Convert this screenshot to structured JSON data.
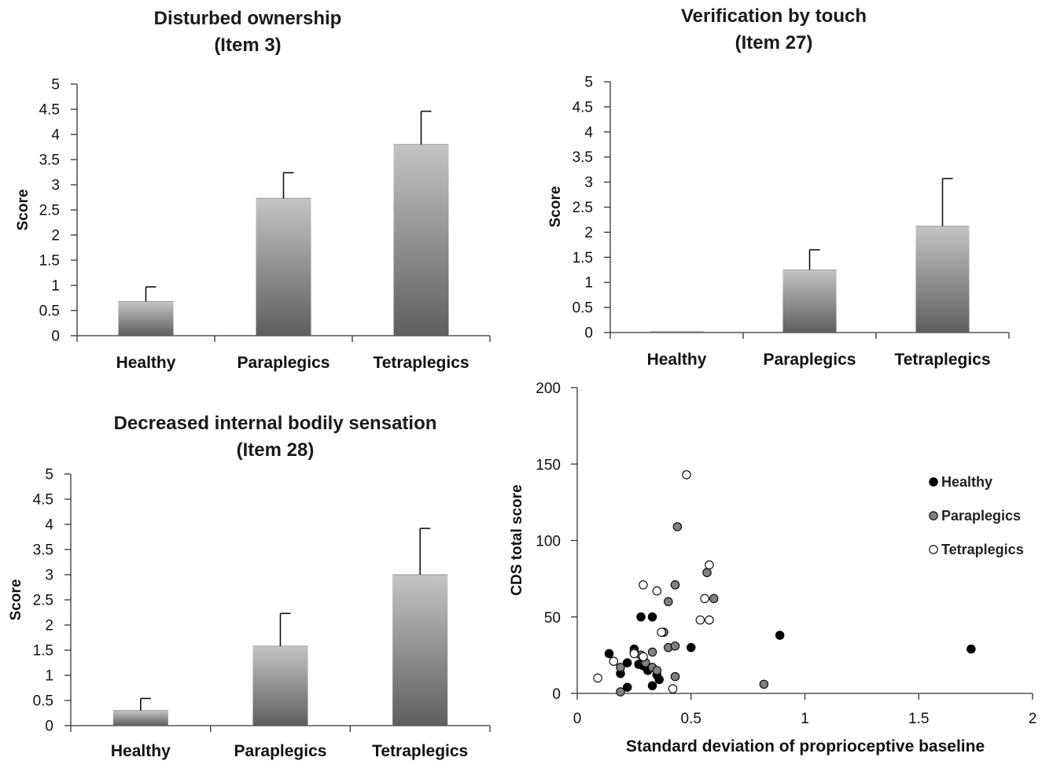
{
  "chart_data": [
    {
      "type": "bar",
      "title": [
        "Disturbed ownership",
        "(Item 3)"
      ],
      "ylabel": "Score",
      "ylim": [
        0,
        5
      ],
      "yticks": [
        0,
        0.5,
        1,
        1.5,
        2,
        2.5,
        3,
        3.5,
        4,
        4.5,
        5
      ],
      "categories": [
        "Healthy",
        "Paraplegics",
        "Tetraplegics"
      ],
      "values": [
        0.68,
        2.73,
        3.8
      ],
      "errors": [
        0.29,
        0.51,
        0.66
      ]
    },
    {
      "type": "bar",
      "title": [
        "Verification by touch",
        "(Item 27)"
      ],
      "ylabel": "Score",
      "ylim": [
        0,
        5
      ],
      "yticks": [
        0,
        0.5,
        1,
        1.5,
        2,
        2.5,
        3,
        3.5,
        4,
        4.5,
        5
      ],
      "categories": [
        "Healthy",
        "Paraplegics",
        "Tetraplegics"
      ],
      "values": [
        0,
        1.25,
        2.12
      ],
      "errors": [
        0,
        0.4,
        0.95
      ]
    },
    {
      "type": "bar",
      "title": [
        "Decreased internal bodily sensation",
        "(Item 28)"
      ],
      "ylabel": "Score",
      "ylim": [
        0,
        5
      ],
      "yticks": [
        0,
        0.5,
        1,
        1.5,
        2,
        2.5,
        3,
        3.5,
        4,
        4.5,
        5
      ],
      "categories": [
        "Healthy",
        "Paraplegics",
        "Tetraplegics"
      ],
      "values": [
        0.3,
        1.58,
        3.0
      ],
      "errors": [
        0.24,
        0.65,
        0.92
      ]
    },
    {
      "type": "scatter",
      "xlabel": "Standard deviation of proprioceptive baseline",
      "ylabel": "CDS total score",
      "xlim": [
        0,
        2
      ],
      "ylim": [
        0,
        200
      ],
      "xticks": [
        0,
        0.5,
        1,
        1.5,
        2
      ],
      "yticks": [
        0,
        50,
        100,
        150,
        200
      ],
      "legend_position": "right",
      "series": [
        {
          "name": "Healthy",
          "color": "#000000",
          "points": [
            [
              0.14,
              26
            ],
            [
              0.19,
              13
            ],
            [
              0.22,
              20
            ],
            [
              0.22,
              4
            ],
            [
              0.25,
              29
            ],
            [
              0.27,
              19
            ],
            [
              0.28,
              50
            ],
            [
              0.29,
              18
            ],
            [
              0.31,
              15
            ],
            [
              0.33,
              50
            ],
            [
              0.33,
              5
            ],
            [
              0.35,
              12
            ],
            [
              0.36,
              9
            ],
            [
              0.5,
              30
            ],
            [
              0.89,
              38
            ],
            [
              1.73,
              29
            ]
          ]
        },
        {
          "name": "Paraplegics",
          "color": "#808080",
          "points": [
            [
              0.19,
              17
            ],
            [
              0.19,
              1
            ],
            [
              0.25,
              27
            ],
            [
              0.28,
              25
            ],
            [
              0.3,
              20
            ],
            [
              0.33,
              27
            ],
            [
              0.33,
              17
            ],
            [
              0.35,
              15
            ],
            [
              0.38,
              40
            ],
            [
              0.4,
              60
            ],
            [
              0.4,
              30
            ],
            [
              0.43,
              71
            ],
            [
              0.43,
              31
            ],
            [
              0.43,
              11
            ],
            [
              0.44,
              109
            ],
            [
              0.57,
              79
            ],
            [
              0.6,
              62
            ],
            [
              0.82,
              6
            ]
          ]
        },
        {
          "name": "Tetraplegics",
          "color": "#ffffff",
          "points": [
            [
              0.09,
              10
            ],
            [
              0.16,
              21
            ],
            [
              0.25,
              26
            ],
            [
              0.29,
              71
            ],
            [
              0.29,
              24
            ],
            [
              0.35,
              67
            ],
            [
              0.37,
              40
            ],
            [
              0.42,
              3
            ],
            [
              0.48,
              143
            ],
            [
              0.54,
              48
            ],
            [
              0.56,
              62
            ],
            [
              0.58,
              84
            ],
            [
              0.58,
              48
            ]
          ]
        }
      ]
    }
  ]
}
